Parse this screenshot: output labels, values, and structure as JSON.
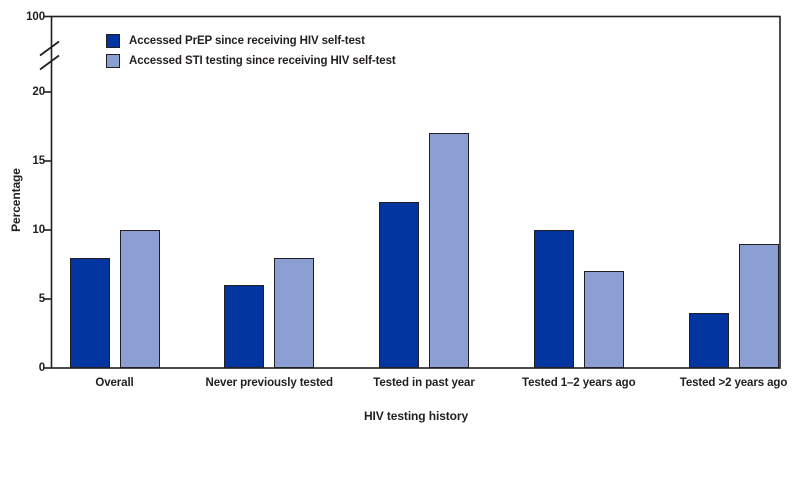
{
  "chart_data": {
    "type": "bar",
    "title": "",
    "xlabel": "HIV testing history",
    "ylabel": "Percentage",
    "categories": [
      "Overall",
      "Never previously tested",
      "Tested in past year",
      "Tested 1–2 years ago",
      "Tested >2 years ago"
    ],
    "series": [
      {
        "name": "Accessed PrEP since receiving HIV self-test",
        "color": "#0335a0",
        "values": [
          8,
          6,
          12,
          10,
          4
        ]
      },
      {
        "name": "Accessed STI testing since receiving HIV self-test",
        "color": "#8c9fd5",
        "values": [
          10,
          8,
          17,
          7,
          9
        ]
      }
    ],
    "y_axis": {
      "ticks": [
        0,
        5,
        10,
        15,
        20
      ],
      "break_label": "100",
      "has_break": true,
      "ylim": [
        0,
        20
      ],
      "break_to": 100
    },
    "legend_position": "top-left-inside",
    "grid": false,
    "frame": true,
    "colors": {
      "axis": "#231f20",
      "bar_border": "#231f20"
    }
  }
}
